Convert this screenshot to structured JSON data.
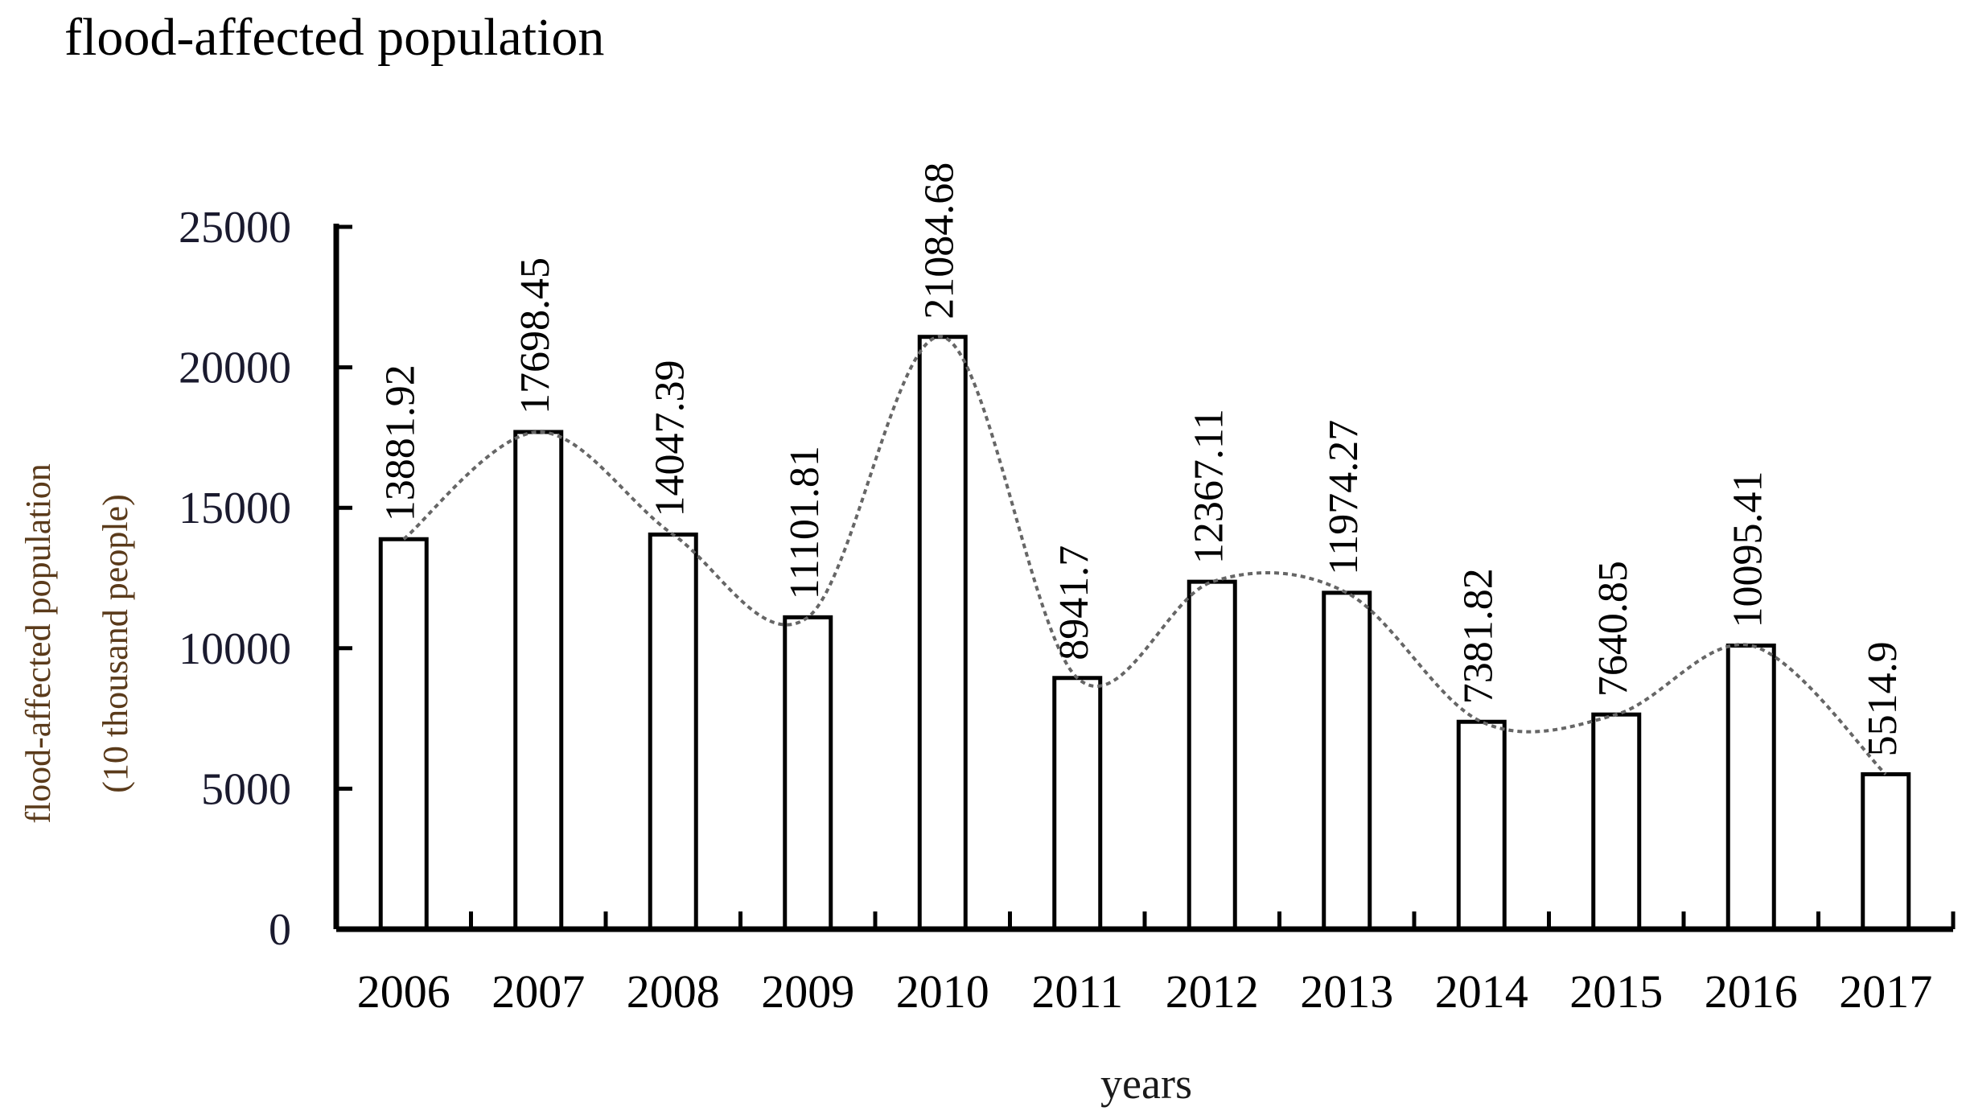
{
  "chart_data": {
    "type": "bar",
    "title": "flood-affected population",
    "xlabel": "years",
    "ylabel_lines": [
      "flood-affected population",
      "(10 thousand people)"
    ],
    "categories": [
      "2006",
      "2007",
      "2008",
      "2009",
      "2010",
      "2011",
      "2012",
      "2013",
      "2014",
      "2015",
      "2016",
      "2017"
    ],
    "values": [
      13881.92,
      17698.45,
      14047.39,
      11101.81,
      21084.68,
      8941.7,
      12367.11,
      11974.27,
      7381.82,
      7640.85,
      10095.41,
      5514.9
    ],
    "value_labels": [
      "13881.92",
      "17698.45",
      "14047.39",
      "11101.81",
      "21084.68",
      "8941.7",
      "12367.11",
      "11974.27",
      "7381.82",
      "7640.85",
      "10095.41",
      "5514.9"
    ],
    "ylim": [
      0,
      25000
    ],
    "yticks": [
      0,
      5000,
      10000,
      15000,
      20000,
      25000
    ],
    "ytick_labels": [
      "0",
      "5000",
      "10000",
      "15000",
      "20000",
      "25000"
    ],
    "trend_line": "smoothed dashed curve through bar tops",
    "grid": false
  }
}
